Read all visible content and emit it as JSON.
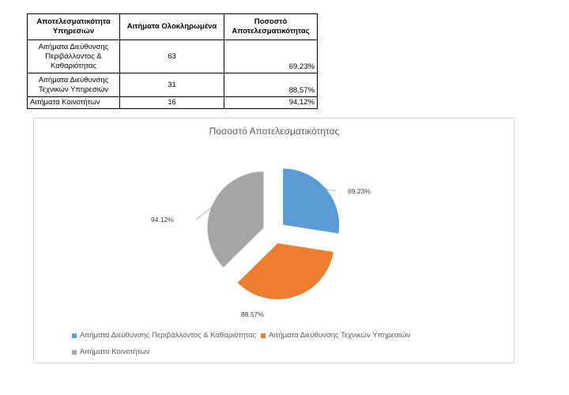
{
  "table": {
    "headers": [
      "Αποτελεσματικότητα Υπηρεσιών",
      "Αιτήματα Ολοκληρωμένα",
      "Ποσοστό Αποτελεσματικότητας"
    ],
    "rows": [
      {
        "service": "Αιτήματα Διεύθυνσης Περιβάλλοντος & Καθαριότητας",
        "completed": "63",
        "efficiency": "69,23%"
      },
      {
        "service": "Αιτήματα Διεύθυνσης Τεχνικών Υπηρεσιών",
        "completed": "31",
        "efficiency": "88,57%"
      },
      {
        "service": "Αιτήματα Κοινοτήτων",
        "completed": "16",
        "efficiency": "94,12%"
      }
    ]
  },
  "chart_data": {
    "type": "pie",
    "title": "Ποσοστό Αποτελεσματικότητας",
    "categories": [
      "Αιτήματα Διεύθυνσης Περιβάλλοντος & Καθαριότητας",
      "Αιτήματα Διεύθυνσης Τεχνικών Υπηρεσιών",
      "Αιτήματα Κοινοτήτων"
    ],
    "values": [
      69.23,
      88.57,
      94.12
    ],
    "data_labels": [
      "69.23%",
      "88.57%",
      "94.12%"
    ],
    "colors": [
      "#5b9bd5",
      "#ed7d31",
      "#a5a5a5"
    ],
    "exploded": true,
    "legend_position": "bottom"
  }
}
